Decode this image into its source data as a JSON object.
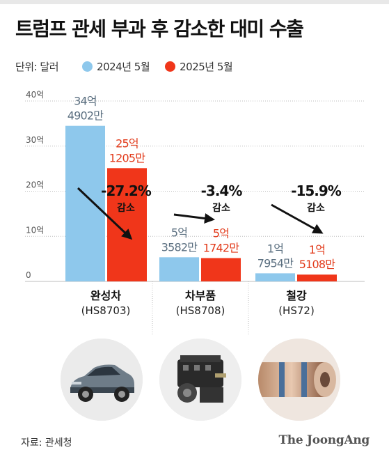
{
  "title": "트럼프 관세 부과 후 감소한 대미 수출",
  "legend": {
    "unit": "단위: 달러",
    "series": [
      {
        "label": "2024년 5월",
        "color": "#8ec8ec"
      },
      {
        "label": "2025년 5월",
        "color": "#f0361a"
      }
    ]
  },
  "chart_data": {
    "type": "bar",
    "title": "트럼프 관세 부과 후 감소한 대미 수출",
    "ylabel": "",
    "ylim": [
      0,
      40
    ],
    "y_ticks": [
      "0",
      "10억",
      "20억",
      "30억",
      "40억"
    ],
    "y_tick_values": [
      0,
      10,
      20,
      30,
      40
    ],
    "categories": [
      {
        "name": "완성차",
        "code": "(HS8703)"
      },
      {
        "name": "차부품",
        "code": "(HS8708)"
      },
      {
        "name": "철강",
        "code": "(HS72)"
      }
    ],
    "series": [
      {
        "name": "2024년 5월",
        "color": "#8ec8ec",
        "values": [
          34.4902,
          5.3582,
          1.7954
        ],
        "labels": [
          [
            "34억",
            "4902만"
          ],
          [
            "5억",
            "3582만"
          ],
          [
            "1억",
            "7954만"
          ]
        ]
      },
      {
        "name": "2025년 5월",
        "color": "#f0361a",
        "values": [
          25.1205,
          5.1742,
          1.5108
        ],
        "labels": [
          [
            "25억",
            "1205만"
          ],
          [
            "5억",
            "1742만"
          ],
          [
            "1억",
            "5108만"
          ]
        ]
      }
    ],
    "changes": [
      {
        "pct": "-27.2%",
        "note": "감소"
      },
      {
        "pct": "-3.4%",
        "note": "감소"
      },
      {
        "pct": "-15.9%",
        "note": "감소"
      }
    ],
    "grid": true
  },
  "images": [
    {
      "icon": "suv-photo"
    },
    {
      "icon": "engine-photo"
    },
    {
      "icon": "steel-coil-photo"
    }
  ],
  "footer": {
    "source": "자료: 관세청",
    "brand": "The JoongAng"
  }
}
